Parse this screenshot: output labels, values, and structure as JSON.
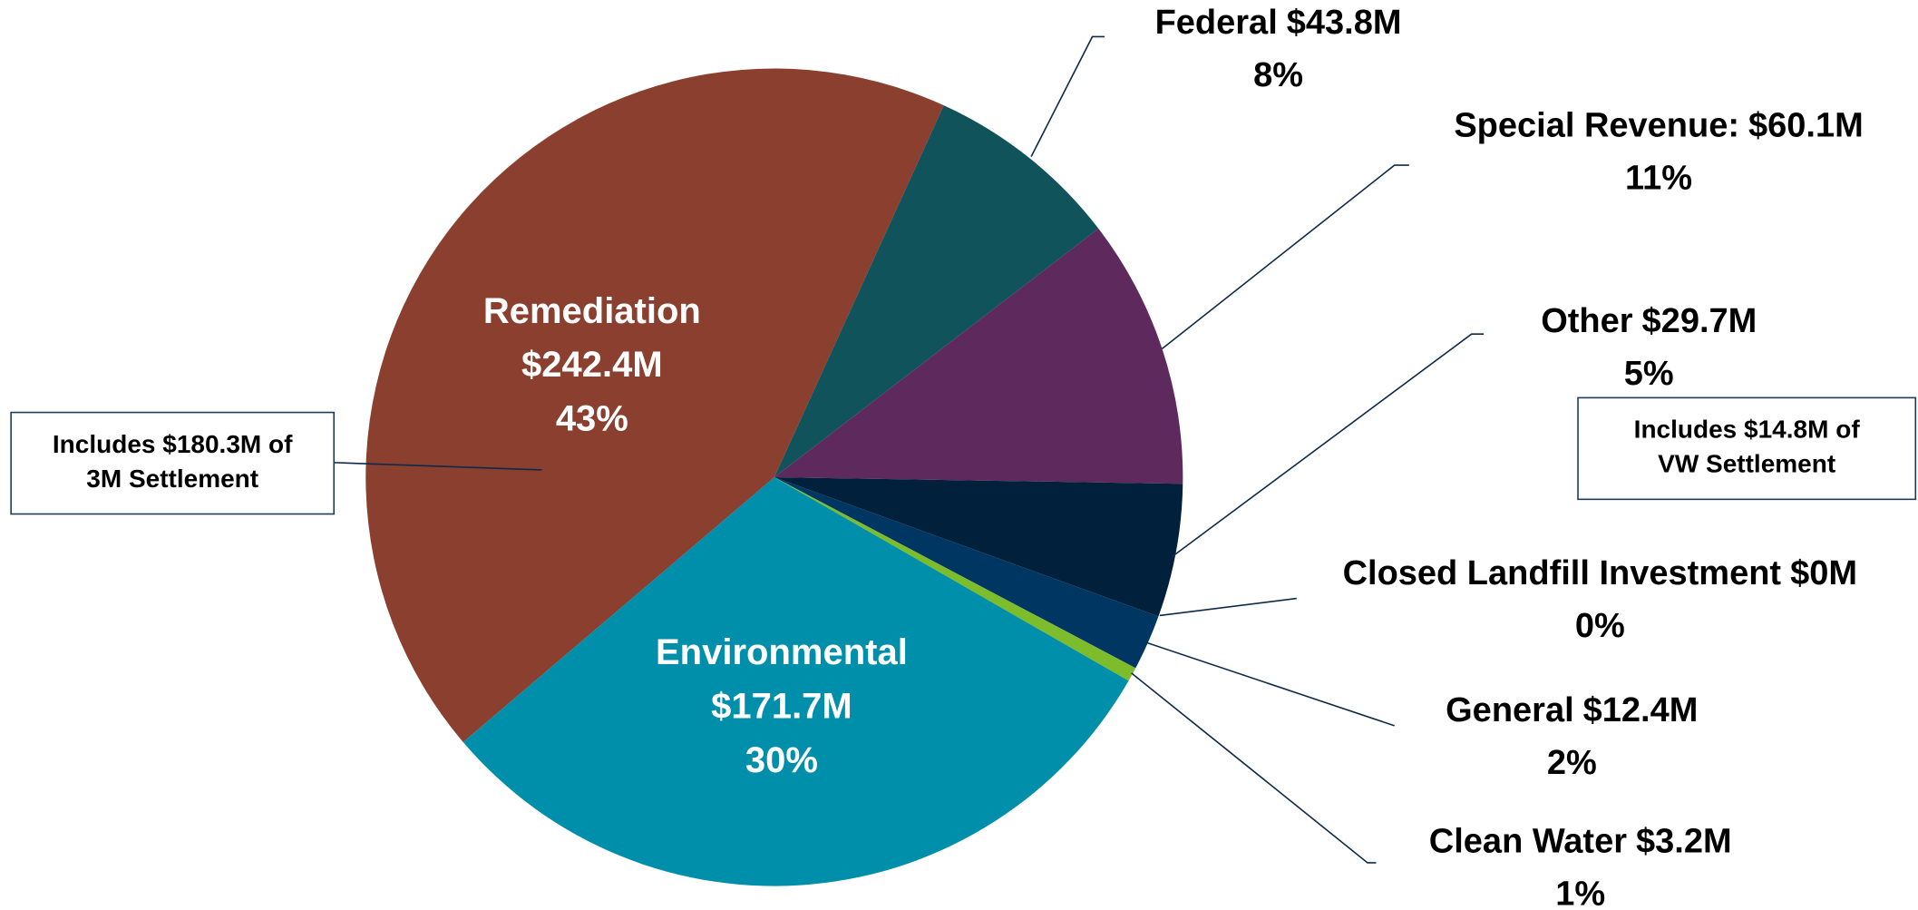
{
  "chart_data": {
    "type": "pie",
    "categories": [
      "Remediation",
      "Federal",
      "Special Revenue:",
      "Other",
      "Closed Landfill Investment",
      "General",
      "Clean Water",
      "Environmental"
    ],
    "values": [
      242.4,
      43.8,
      60.1,
      29.7,
      0,
      12.4,
      3.2,
      171.7
    ],
    "value_labels": [
      "$242.4M",
      "$43.8M",
      "$60.1M",
      "$29.7M",
      "$0M",
      "$12.4M",
      "$3.2M",
      "$171.7M"
    ],
    "percentages": [
      43,
      8,
      11,
      5,
      0,
      2,
      1,
      30
    ],
    "percentage_labels": [
      "43%",
      "8%",
      "11%",
      "5%",
      "0%",
      "2%",
      "1%",
      "30%"
    ],
    "colors": [
      "#8b3f2f",
      "#10535b",
      "#5e2a5e",
      "#00203b",
      "#002c50",
      "#003762",
      "#7dbc2b",
      "#008fab"
    ],
    "annotations": [
      {
        "lines": [
          "Includes $180.3M of",
          "3M Settlement"
        ]
      },
      {
        "lines": [
          "Includes $14.8M of",
          "VW Settlement"
        ]
      }
    ]
  }
}
